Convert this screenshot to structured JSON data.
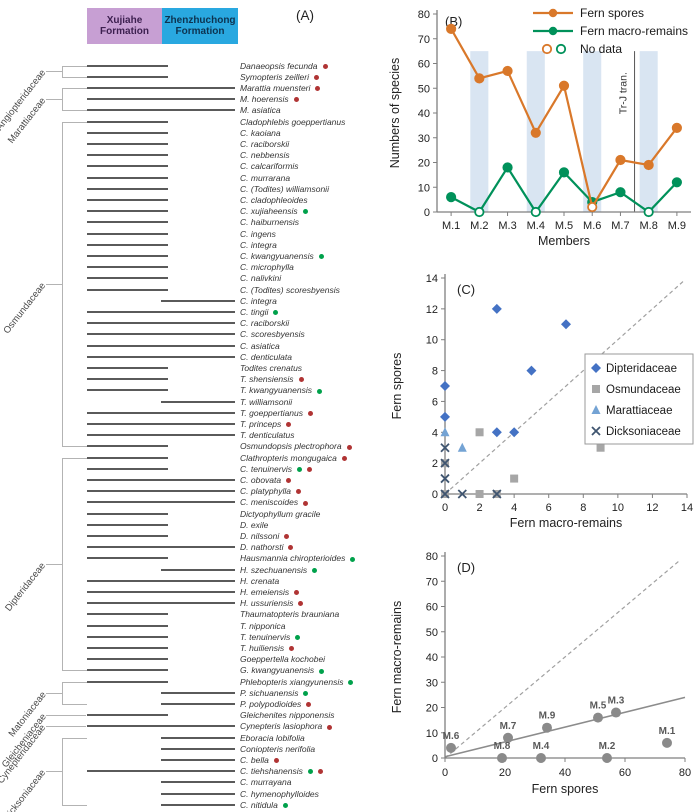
{
  "panelA": {
    "label": "(A)",
    "formations": [
      {
        "name": "Xujiahe Formation",
        "bg": "#c79fd3",
        "text_color": "#3d2050"
      },
      {
        "name": "Zhenzhuchong Formation",
        "bg": "#29a8e0",
        "text_color": "#0d3350"
      }
    ],
    "marker_colors": {
      "r": "#b03434",
      "g": "#00a14b"
    },
    "families": [
      {
        "name": "Angiopteridaceae",
        "from": 1,
        "to": 2
      },
      {
        "name": "Marattiaceae",
        "from": 3,
        "to": 5
      },
      {
        "name": "Osmundaceae",
        "from": 6,
        "to": 35
      },
      {
        "name": "Dipteridaceae",
        "from": 36,
        "to": 55
      },
      {
        "name": "Matoniaceae",
        "from": 56,
        "to": 58
      },
      {
        "name": "Gleicheniaceae",
        "from": 59,
        "to": 59
      },
      {
        "name": "Cynepteridaceae",
        "from": 60,
        "to": 60
      },
      {
        "name": "Dicksoniaceae",
        "from": 61,
        "to": 67
      }
    ],
    "species_format": [
      "name",
      "markers(r=red,g=green)",
      "range_start_pct",
      "range_end_pct"
    ],
    "species": [
      [
        "Danaeopsis fecunda",
        "r",
        0,
        55
      ],
      [
        "Symopteris zeilleri",
        "r",
        0,
        55
      ],
      [
        "Marattia muensteri",
        "r",
        0,
        100
      ],
      [
        "M. hoerensis",
        "r",
        0,
        100
      ],
      [
        "M. asiatica",
        "",
        0,
        100
      ],
      [
        "Cladophlebis goeppertianus",
        "",
        0,
        55
      ],
      [
        "C. kaoiana",
        "",
        0,
        55
      ],
      [
        "C. raciborskii",
        "",
        0,
        55
      ],
      [
        "C. nebbensis",
        "",
        0,
        55
      ],
      [
        "C. calcariformis",
        "",
        0,
        55
      ],
      [
        "C. murrarana",
        "",
        0,
        55
      ],
      [
        "C. (Todites) williamsonii",
        "",
        0,
        55
      ],
      [
        "C. cladophleoides",
        "",
        0,
        55
      ],
      [
        "C. xujiaheensis",
        "g",
        0,
        55
      ],
      [
        "C. haiburnensis",
        "",
        0,
        55
      ],
      [
        "C. ingens",
        "",
        0,
        55
      ],
      [
        "C. integra",
        "",
        0,
        55
      ],
      [
        "C. kwangyuanensis",
        "g",
        0,
        55
      ],
      [
        "C. microphylla",
        "",
        0,
        55
      ],
      [
        "C. nalivkini",
        "",
        0,
        55
      ],
      [
        "C. (Todites) scoresbyensis",
        "",
        0,
        55
      ],
      [
        "C. integra",
        "",
        50,
        100
      ],
      [
        "C. tingii",
        "g",
        0,
        100
      ],
      [
        "C. raciborskii",
        "",
        0,
        100
      ],
      [
        "C. scoresbyensis",
        "",
        0,
        100
      ],
      [
        "C. asiatica",
        "",
        0,
        100
      ],
      [
        "C. denticulata",
        "",
        0,
        100
      ],
      [
        "Todites crenatus",
        "",
        0,
        55
      ],
      [
        "T. shensiensis",
        "r",
        0,
        55
      ],
      [
        "T. kwangyuanensis",
        "g",
        0,
        55
      ],
      [
        "T. williamsonii",
        "",
        50,
        100
      ],
      [
        "T. goeppertianus",
        "r",
        0,
        100
      ],
      [
        "T. princeps",
        "r",
        0,
        100
      ],
      [
        "T. denticulatus",
        "",
        0,
        100
      ],
      [
        "Osmundopsis plectrophora",
        "r",
        0,
        55
      ],
      [
        "Clathropteris mongugaica",
        "r",
        0,
        55
      ],
      [
        "C. tenuinervis",
        "gr",
        0,
        55
      ],
      [
        "C. obovata",
        "r",
        0,
        100
      ],
      [
        "C. platyphylla",
        "r",
        0,
        100
      ],
      [
        "C. meniscoides",
        "r",
        0,
        100
      ],
      [
        "Dictyophyllum gracile",
        "",
        0,
        55
      ],
      [
        "D. exile",
        "",
        0,
        55
      ],
      [
        "D. nilssoni",
        "r",
        0,
        55
      ],
      [
        "D. nathorsti",
        "r",
        0,
        100
      ],
      [
        "Hausmannia chiropterioides",
        "g",
        0,
        55
      ],
      [
        "H. szechuanensis",
        "g",
        50,
        100
      ],
      [
        "H. crenata",
        "",
        0,
        100
      ],
      [
        "H. emeiensis",
        "r",
        0,
        100
      ],
      [
        "H. ussuriensis",
        "r",
        0,
        100
      ],
      [
        "Thaumatopteris brauniana",
        "",
        0,
        55
      ],
      [
        "T. nipponica",
        "",
        0,
        55
      ],
      [
        "T. tenuinervis",
        "g",
        0,
        55
      ],
      [
        "T. huiliensis",
        "r",
        0,
        55
      ],
      [
        "Goeppertella kochobei",
        "",
        0,
        55
      ],
      [
        "G. kwangyuanensis",
        "g",
        0,
        55
      ],
      [
        "Phlebopteris xiangyunensis",
        "g",
        0,
        55
      ],
      [
        "P. sichuanensis",
        "g",
        50,
        100
      ],
      [
        "P. polypodioides",
        "r",
        50,
        100
      ],
      [
        "Gleichenites nipponensis",
        "",
        0,
        55
      ],
      [
        "Cynepteris lasiophora",
        "r",
        0,
        100
      ],
      [
        "Eboracia lobifolia",
        "",
        50,
        100
      ],
      [
        "Coniopteris nerifolia",
        "",
        50,
        100
      ],
      [
        "C. bella",
        "r",
        50,
        100
      ],
      [
        "C. tiehshanensis",
        "gr",
        0,
        100
      ],
      [
        "C. murrayana",
        "",
        50,
        100
      ],
      [
        "C. hymenophylloides",
        "",
        50,
        100
      ],
      [
        "C. nitidula",
        "g",
        50,
        100
      ]
    ]
  },
  "chart_data": [
    {
      "id": "B",
      "type": "line",
      "title": "(B)",
      "categories": [
        "M.1",
        "M.2",
        "M.3",
        "M.4",
        "M.5",
        "M.6",
        "M.7",
        "M.8",
        "M.9"
      ],
      "xlabel": "Members",
      "ylabel": "Numbers of species",
      "ylim": [
        0,
        80
      ],
      "ytick_step": 10,
      "series": [
        {
          "name": "Fern macro-remains",
          "color": "#00915a",
          "values": [
            6,
            0,
            18,
            0,
            16,
            4,
            8,
            0,
            12
          ],
          "open_points": [
            1,
            3,
            7
          ]
        },
        {
          "name": "Fern spores",
          "color": "#d9782a",
          "values": [
            74,
            54,
            57,
            32,
            51,
            2,
            21,
            19,
            34
          ],
          "open_points": [
            5
          ]
        }
      ],
      "legend": [
        "Fern spores",
        "Fern macro-remains",
        "No data"
      ],
      "no_data_label": "No data",
      "bands": {
        "category_indexes": [
          1,
          3,
          5,
          7
        ],
        "top_value": 65,
        "color": "#d9e5f2"
      },
      "divider": {
        "label": "Tr-J tran.",
        "between_categories": [
          6,
          7
        ]
      }
    },
    {
      "id": "C",
      "type": "scatter",
      "title": "(C)",
      "xlabel": "Fern macro-remains",
      "ylabel": "Fern spores",
      "xlim": [
        0,
        14
      ],
      "ylim": [
        0,
        14
      ],
      "tick_step": 2,
      "diagonal_dashed": true,
      "series": [
        {
          "name": "Dipteridaceae",
          "marker": "diamond",
          "color": "#4472c4",
          "points": [
            [
              0,
              7
            ],
            [
              0,
              5
            ],
            [
              3,
              12
            ],
            [
              7,
              11
            ],
            [
              5,
              8
            ],
            [
              3,
              4
            ],
            [
              4,
              4
            ]
          ]
        },
        {
          "name": "Osmundaceae",
          "marker": "square",
          "color": "#a6a6a6",
          "points": [
            [
              0,
              2
            ],
            [
              0,
              0
            ],
            [
              2,
              4
            ],
            [
              4,
              1
            ],
            [
              9,
              3
            ],
            [
              2,
              0
            ],
            [
              3,
              0
            ]
          ]
        },
        {
          "name": "Marattiaceae",
          "marker": "triangle",
          "color": "#74a3d4",
          "points": [
            [
              0,
              4
            ],
            [
              1,
              3
            ]
          ]
        },
        {
          "name": "Dicksoniaceae",
          "marker": "x",
          "color": "#3f5570",
          "points": [
            [
              0,
              3
            ],
            [
              0,
              2
            ],
            [
              0,
              1
            ],
            [
              0,
              0
            ],
            [
              1,
              0
            ],
            [
              3,
              0
            ]
          ]
        }
      ],
      "legend_position": "right-middle"
    },
    {
      "id": "D",
      "type": "scatter",
      "title": "(D)",
      "xlabel": "Fern spores",
      "ylabel": "Fern macro-remains",
      "xlim": [
        0,
        80
      ],
      "ylim": [
        0,
        80
      ],
      "xtick_step": 20,
      "ytick_step": 10,
      "marker_color": "#8a8a8a",
      "label_color": "#595959",
      "diagonal_dashed": true,
      "trend_line": {
        "x1": 0,
        "y1": 0.5,
        "x2": 80,
        "y2": 24
      },
      "points": [
        {
          "label": "M.1",
          "x": 74,
          "y": 6
        },
        {
          "label": "M.2",
          "x": 54,
          "y": 0
        },
        {
          "label": "M.3",
          "x": 57,
          "y": 18
        },
        {
          "label": "M.4",
          "x": 32,
          "y": 0
        },
        {
          "label": "M.5",
          "x": 51,
          "y": 16
        },
        {
          "label": "M.6",
          "x": 2,
          "y": 4
        },
        {
          "label": "M.7",
          "x": 21,
          "y": 8
        },
        {
          "label": "M.8",
          "x": 19,
          "y": 0
        },
        {
          "label": "M.9",
          "x": 34,
          "y": 12
        }
      ]
    }
  ]
}
